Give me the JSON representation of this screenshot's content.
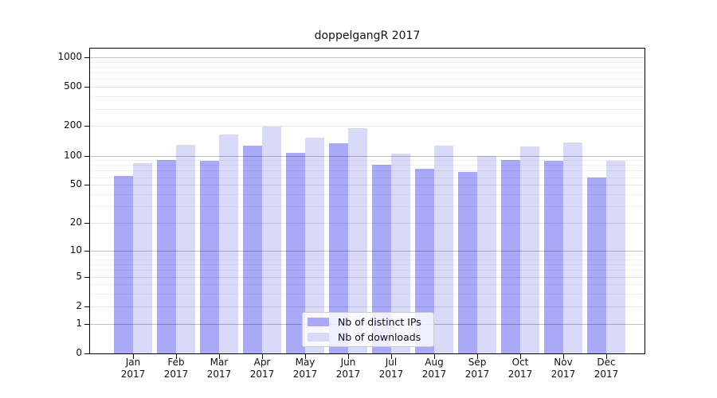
{
  "chart_data": {
    "type": "bar",
    "title": "doppelgangR 2017",
    "categories": [
      "Jan",
      "Feb",
      "Mar",
      "Apr",
      "May",
      "Jun",
      "Jul",
      "Aug",
      "Sep",
      "Oct",
      "Nov",
      "Dec"
    ],
    "category_year": "2017",
    "series": [
      {
        "name": "Nb of distinct IPs",
        "color": "#a9a9f7",
        "values": [
          62,
          90,
          89,
          127,
          106,
          134,
          80,
          74,
          68,
          90,
          89,
          60
        ]
      },
      {
        "name": "Nb of downloads",
        "color": "#d9d9f8",
        "values": [
          84,
          129,
          165,
          197,
          153,
          192,
          104,
          126,
          99,
          123,
          135,
          89
        ]
      }
    ],
    "xlabel": "",
    "ylabel": "",
    "y_axis": {
      "scale": "log10(value+1)",
      "ticks": [
        0,
        1,
        2,
        5,
        10,
        20,
        50,
        100,
        200,
        500,
        1000
      ],
      "minor_gridlines": [
        3,
        4,
        6,
        7,
        8,
        9,
        30,
        40,
        60,
        70,
        80,
        90,
        300,
        400,
        600,
        700,
        800,
        900
      ],
      "range": [
        0,
        1000
      ]
    },
    "grid": true,
    "legend_position": "bottom-center"
  },
  "legend": {
    "items": [
      "Nb of distinct IPs",
      "Nb of downloads"
    ]
  },
  "colors": {
    "bar_distinct_ips": "#a9a9f7",
    "bar_downloads": "#d9d9f8",
    "grid_power10": "rgba(0,0,0,0.25)",
    "grid_labeled": "rgba(0,0,0,0.10)",
    "grid_minor": "rgba(0,0,0,0.055)",
    "frame": "#000000",
    "text": "#111111",
    "legend_border": "#cccccc",
    "legend_background": "rgba(255,255,255,0.8)"
  }
}
